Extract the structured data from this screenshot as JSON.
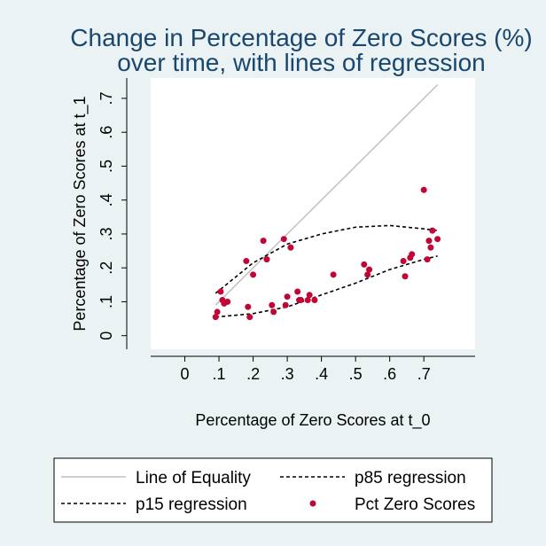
{
  "chart_data": {
    "type": "scatter",
    "title": [
      "Change in Percentage of Zero Scores (%)",
      "over time, with lines of regression"
    ],
    "xlabel": "Percentage of Zero Scores at t_0",
    "ylabel": "Percentage of Zero Scores at t_1",
    "xlim": [
      -0.1,
      0.85
    ],
    "ylim": [
      -0.04,
      0.76
    ],
    "x_ticks": [
      0,
      0.1,
      0.2,
      0.3,
      0.4,
      0.5,
      0.6,
      0.7
    ],
    "x_tick_labels": [
      "0",
      ".1",
      ".2",
      ".3",
      ".4",
      ".5",
      ".6",
      ".7"
    ],
    "y_ticks": [
      0,
      0.1,
      0.2,
      0.3,
      0.4,
      0.5,
      0.6,
      0.7
    ],
    "y_tick_labels": [
      "0",
      ".1",
      ".2",
      ".3",
      ".4",
      ".5",
      ".6",
      ".7"
    ],
    "grid": false,
    "legend_position": "bottom",
    "colors": {
      "background": "#eaf2f3",
      "plot_background": "#ffffff",
      "title": "#1a476f",
      "points": "#c10534",
      "equality_line": "#c0c0c0",
      "regression": "#000000"
    },
    "series": [
      {
        "name": "Pct Zero Scores",
        "kind": "scatter",
        "points": [
          [
            0.09,
            0.055
          ],
          [
            0.095,
            0.07
          ],
          [
            0.105,
            0.13
          ],
          [
            0.11,
            0.105
          ],
          [
            0.115,
            0.095
          ],
          [
            0.125,
            0.1
          ],
          [
            0.18,
            0.22
          ],
          [
            0.185,
            0.085
          ],
          [
            0.19,
            0.055
          ],
          [
            0.2,
            0.18
          ],
          [
            0.23,
            0.28
          ],
          [
            0.24,
            0.225
          ],
          [
            0.255,
            0.09
          ],
          [
            0.26,
            0.07
          ],
          [
            0.29,
            0.285
          ],
          [
            0.295,
            0.09
          ],
          [
            0.3,
            0.115
          ],
          [
            0.31,
            0.26
          ],
          [
            0.33,
            0.13
          ],
          [
            0.335,
            0.105
          ],
          [
            0.34,
            0.105
          ],
          [
            0.36,
            0.105
          ],
          [
            0.365,
            0.12
          ],
          [
            0.38,
            0.105
          ],
          [
            0.435,
            0.18
          ],
          [
            0.525,
            0.21
          ],
          [
            0.535,
            0.18
          ],
          [
            0.54,
            0.195
          ],
          [
            0.64,
            0.22
          ],
          [
            0.645,
            0.175
          ],
          [
            0.66,
            0.23
          ],
          [
            0.665,
            0.24
          ],
          [
            0.7,
            0.43
          ],
          [
            0.71,
            0.225
          ],
          [
            0.715,
            0.28
          ],
          [
            0.72,
            0.26
          ],
          [
            0.725,
            0.31
          ],
          [
            0.74,
            0.285
          ]
        ]
      },
      {
        "name": "Line of Equality",
        "kind": "line",
        "points": [
          [
            0.09,
            0.09
          ],
          [
            0.74,
            0.74
          ]
        ]
      },
      {
        "name": "p15 regression",
        "kind": "curve",
        "points": [
          [
            0.09,
            0.055
          ],
          [
            0.2,
            0.065
          ],
          [
            0.3,
            0.085
          ],
          [
            0.4,
            0.12
          ],
          [
            0.5,
            0.155
          ],
          [
            0.6,
            0.195
          ],
          [
            0.7,
            0.225
          ],
          [
            0.74,
            0.235
          ]
        ]
      },
      {
        "name": "p85 regression",
        "kind": "curve",
        "points": [
          [
            0.09,
            0.125
          ],
          [
            0.2,
            0.215
          ],
          [
            0.3,
            0.27
          ],
          [
            0.4,
            0.3
          ],
          [
            0.5,
            0.32
          ],
          [
            0.6,
            0.325
          ],
          [
            0.7,
            0.315
          ],
          [
            0.74,
            0.31
          ]
        ]
      }
    ],
    "legend": [
      {
        "label": "Line of Equality",
        "symbol": "solid-gray"
      },
      {
        "label": "p85 regression",
        "symbol": "dashed"
      },
      {
        "label": "p15 regression",
        "symbol": "dashed"
      },
      {
        "label": "Pct Zero Scores",
        "symbol": "dot"
      }
    ]
  }
}
